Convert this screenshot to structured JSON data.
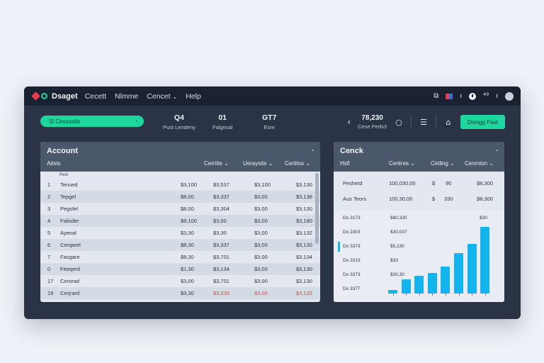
{
  "menubar": {
    "brand": "Dsaget",
    "items": [
      "Cecett",
      "Nlmme",
      "Cencet",
      "Help"
    ]
  },
  "toolbar": {
    "pill_label": "Sl Cesssstte",
    "stats": [
      {
        "value": "Q4",
        "label": "Pust Lendeny"
      },
      {
        "value": "01",
        "label": "Falgesal"
      },
      {
        "value": "GT7",
        "label": "Esre"
      }
    ],
    "right_stat": {
      "value": "78,230",
      "label": "Cese Peds3"
    },
    "primary_button": "Disngg Past"
  },
  "account": {
    "title": "Account",
    "col_account": "Aitsts",
    "col_1": "Cerriite",
    "col_2": "Ueraysits",
    "col_3": "Ceriitos",
    "sub": "Pest",
    "rows": [
      {
        "n": "1",
        "name": "Tenued",
        "a": "$3,100",
        "b": "$3,537",
        "c": "$3,100",
        "d": "$3,130"
      },
      {
        "n": "2",
        "name": "Tepgel",
        "a": "$8,00",
        "b": "$3,337",
        "c": "$3,00",
        "d": "$3,136"
      },
      {
        "n": "3",
        "name": "Pegsfel",
        "a": "$8,00",
        "b": "$3,304",
        "c": "$3,00",
        "d": "$3,130"
      },
      {
        "n": "4",
        "name": "Falisder",
        "a": "$8,100",
        "b": "$3,00",
        "c": "$3,00",
        "d": "$3,180"
      },
      {
        "n": "5",
        "name": "Ayeoal",
        "a": "$3,30",
        "b": "$3,30",
        "c": "$3,00",
        "d": "$3,132"
      },
      {
        "n": "6",
        "name": "Cerqarel",
        "a": "$8,30",
        "b": "$3,337",
        "c": "$3,00",
        "d": "$3,130"
      },
      {
        "n": "7",
        "name": "Fasgare",
        "a": "$8,30",
        "b": "$3,701",
        "c": "$3,00",
        "d": "$3,134"
      },
      {
        "n": "0",
        "name": "Feeqerd",
        "a": "$1,30",
        "b": "$3,134",
        "c": "$3,00",
        "d": "$3,130"
      },
      {
        "n": "17",
        "name": "Cerorad",
        "a": "$3,00",
        "b": "$3,701",
        "c": "$3,00",
        "d": "$3,130"
      },
      {
        "n": "19",
        "name": "Cerjrard",
        "a": "$3,30",
        "b": "$3,333",
        "c": "$3,00",
        "d": "$3,133"
      }
    ]
  },
  "check": {
    "title": "Cenck",
    "col_0": "Hsfl",
    "col_1": "Centres",
    "col_2": "Cetling",
    "col_3": "Cenmion",
    "rows": [
      {
        "name": "Peshetd",
        "a": "100,030,00",
        "b": "$",
        "c": "90",
        "d": "$8,300"
      },
      {
        "name": "Aus Teors",
        "a": "100,30,00",
        "b": "$",
        "c": "330",
        "d": "$8,300"
      }
    ],
    "chart_rows": [
      {
        "date": "Do 3173",
        "value": "$80,330"
      },
      {
        "date": "Do 2303",
        "value": "$30,037"
      },
      {
        "date": "Do 3373",
        "value": "$5,130"
      },
      {
        "date": "Do 3313",
        "value": "$33"
      },
      {
        "date": "Do 3373",
        "value": "$30,30"
      },
      {
        "date": "Do 3377",
        "value": ""
      }
    ],
    "top_value": "$30"
  },
  "chart_data": {
    "type": "bar",
    "categories": [
      "1",
      "2",
      "3",
      "4",
      "5",
      "6",
      "7",
      "8"
    ],
    "values": [
      5,
      20,
      25,
      29,
      38,
      57,
      70,
      94
    ],
    "ylim": [
      0,
      100
    ]
  }
}
